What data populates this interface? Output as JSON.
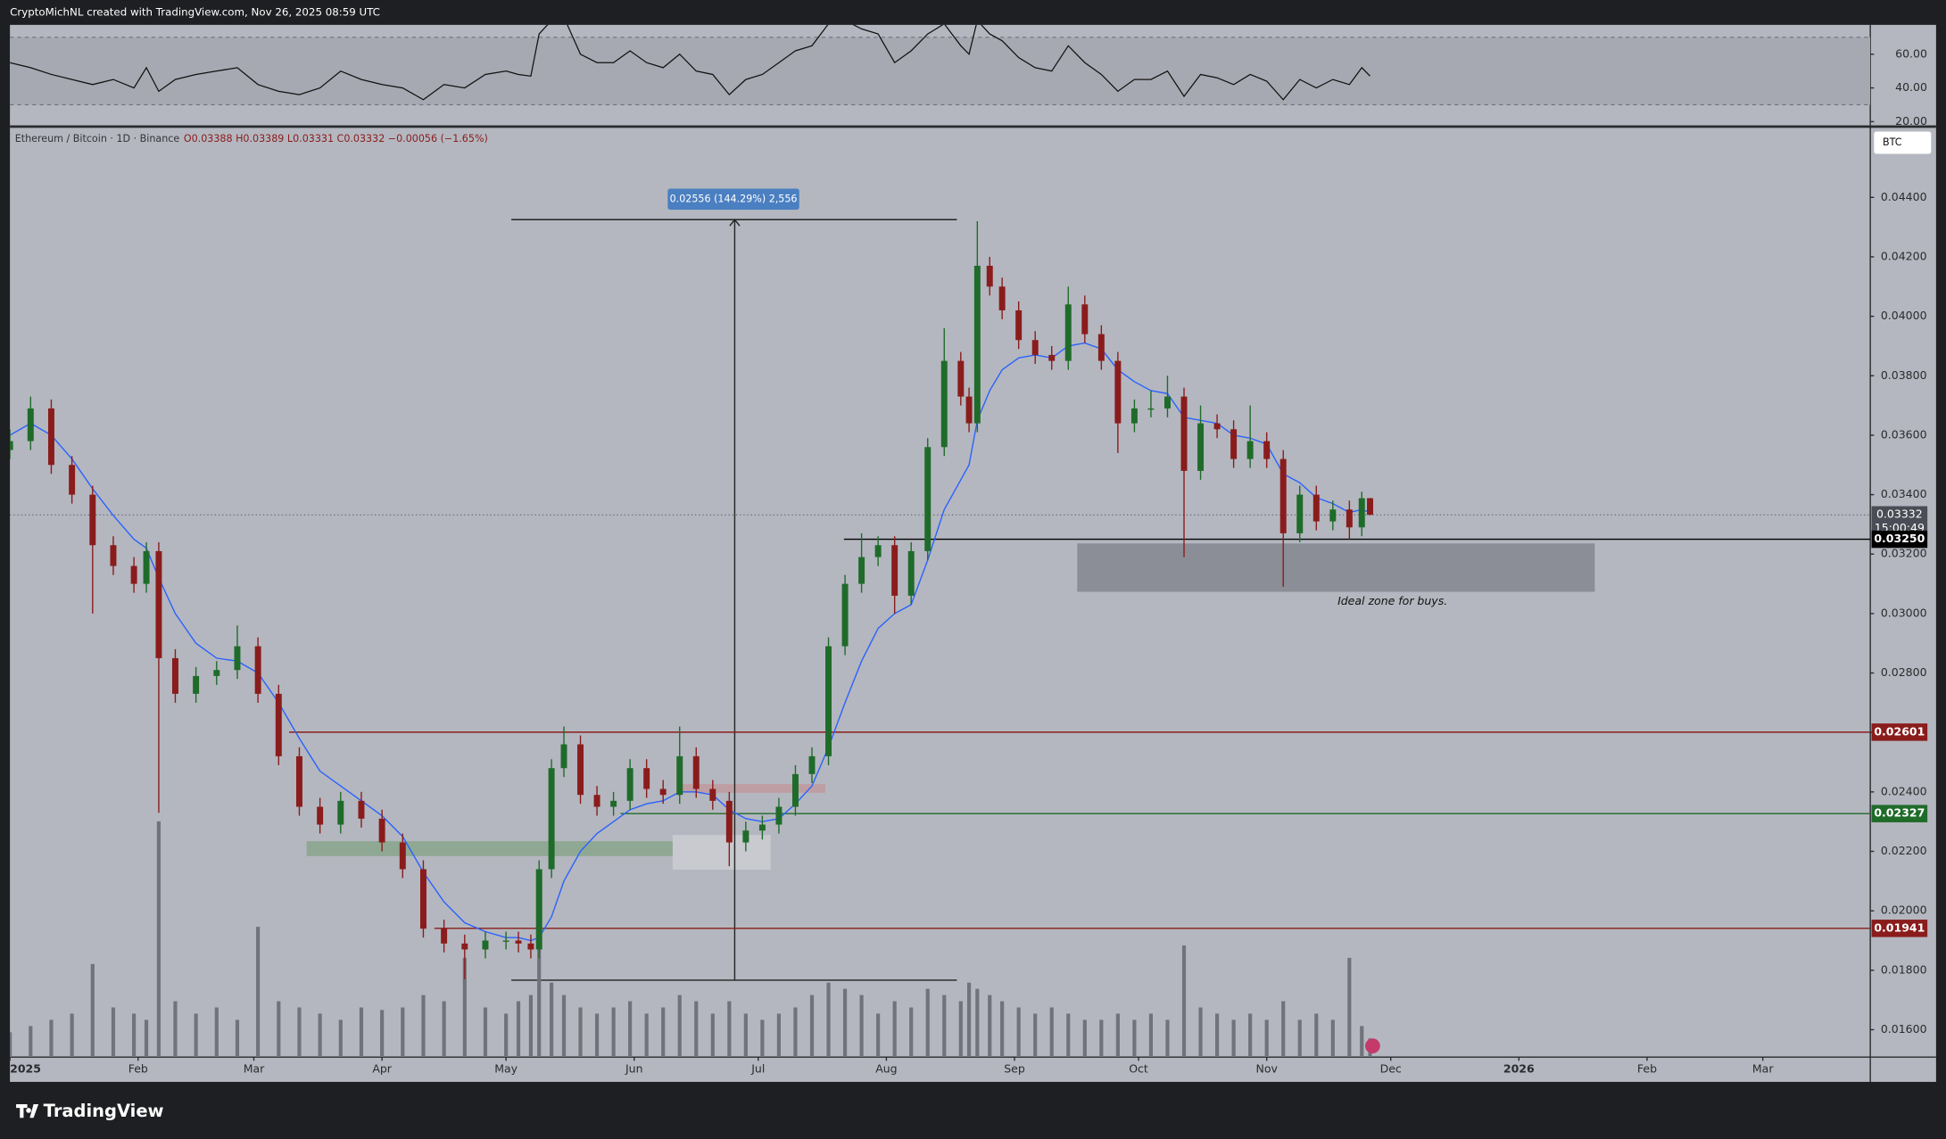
{
  "header": {
    "author_line": "CryptoMichNL created with TradingView.com, Nov 26, 2025 08:59 UTC"
  },
  "chart_data": {
    "type": "candlestick",
    "symbol": "Ethereum / Bitcoin · 1D · Binance",
    "ohlc_legend": "O0.03388 H0.03389 L0.03331 C0.03332 −0.00056 (−1.65%)",
    "currency": "BTC",
    "up_color": "#1f6b2a",
    "down_color": "#8a1c1c",
    "volume_color": "#70737b",
    "x": [
      0,
      5,
      10,
      15,
      20,
      25,
      30,
      33,
      36,
      40,
      45,
      50,
      55,
      60,
      65,
      70,
      75,
      80,
      85,
      90,
      95,
      100,
      105,
      110,
      115,
      120,
      123,
      126,
      128,
      131,
      134,
      138,
      142,
      146,
      150,
      154,
      158,
      162,
      166,
      170,
      174,
      178,
      182,
      186,
      190,
      194,
      198,
      202,
      206,
      210,
      214,
      218,
      222,
      226,
      230,
      232,
      234,
      237,
      240,
      244,
      248,
      252,
      256,
      260,
      264,
      268,
      272,
      276,
      280,
      284,
      288,
      292,
      296,
      300,
      304,
      308,
      312,
      316,
      320,
      324,
      327,
      329
    ],
    "candles": [
      [
        0.0355,
        0.0362,
        0.0352,
        0.0358
      ],
      [
        0.0358,
        0.0373,
        0.0355,
        0.0369
      ],
      [
        0.0369,
        0.0372,
        0.0347,
        0.035
      ],
      [
        0.035,
        0.0353,
        0.0337,
        0.034
      ],
      [
        0.034,
        0.0343,
        0.03,
        0.0323
      ],
      [
        0.0323,
        0.0326,
        0.0313,
        0.0316
      ],
      [
        0.0316,
        0.0319,
        0.0307,
        0.031
      ],
      [
        0.031,
        0.0324,
        0.0307,
        0.0321
      ],
      [
        0.0321,
        0.0324,
        0.0233,
        0.0285
      ],
      [
        0.0285,
        0.0288,
        0.027,
        0.0273
      ],
      [
        0.0273,
        0.0282,
        0.027,
        0.0279
      ],
      [
        0.0279,
        0.0284,
        0.0276,
        0.0281
      ],
      [
        0.0281,
        0.0296,
        0.0278,
        0.0289
      ],
      [
        0.0289,
        0.0292,
        0.027,
        0.0273
      ],
      [
        0.0273,
        0.0276,
        0.0249,
        0.0252
      ],
      [
        0.0252,
        0.0255,
        0.0232,
        0.0235
      ],
      [
        0.0235,
        0.0238,
        0.0226,
        0.0229
      ],
      [
        0.0229,
        0.024,
        0.0226,
        0.0237
      ],
      [
        0.0237,
        0.024,
        0.0228,
        0.0231
      ],
      [
        0.0231,
        0.0234,
        0.022,
        0.0223
      ],
      [
        0.0223,
        0.0226,
        0.0211,
        0.0214
      ],
      [
        0.0214,
        0.0217,
        0.0191,
        0.0194
      ],
      [
        0.0194,
        0.0197,
        0.0186,
        0.0189
      ],
      [
        0.0189,
        0.0192,
        0.0177,
        0.0187
      ],
      [
        0.0187,
        0.0193,
        0.0184,
        0.019
      ],
      [
        0.019,
        0.0193,
        0.0187,
        0.019
      ],
      [
        0.019,
        0.0193,
        0.0186,
        0.0189
      ],
      [
        0.0189,
        0.0192,
        0.0184,
        0.0187
      ],
      [
        0.0187,
        0.0217,
        0.0184,
        0.0214
      ],
      [
        0.0214,
        0.0251,
        0.0211,
        0.0248
      ],
      [
        0.0248,
        0.0262,
        0.0245,
        0.0256
      ],
      [
        0.0256,
        0.0259,
        0.0236,
        0.0239
      ],
      [
        0.0239,
        0.0242,
        0.0232,
        0.0235
      ],
      [
        0.0235,
        0.024,
        0.0232,
        0.0237
      ],
      [
        0.0237,
        0.0251,
        0.0234,
        0.0248
      ],
      [
        0.0248,
        0.0251,
        0.0238,
        0.0241
      ],
      [
        0.0241,
        0.0244,
        0.0236,
        0.0239
      ],
      [
        0.0239,
        0.0262,
        0.0236,
        0.0252
      ],
      [
        0.0252,
        0.0255,
        0.0238,
        0.0241
      ],
      [
        0.0241,
        0.0244,
        0.0234,
        0.0237
      ],
      [
        0.0237,
        0.024,
        0.0215,
        0.0223
      ],
      [
        0.0223,
        0.023,
        0.022,
        0.0227
      ],
      [
        0.0227,
        0.0232,
        0.0224,
        0.0229
      ],
      [
        0.0229,
        0.0238,
        0.0226,
        0.0235
      ],
      [
        0.0235,
        0.0249,
        0.0232,
        0.0246
      ],
      [
        0.0246,
        0.0255,
        0.0243,
        0.0252
      ],
      [
        0.0252,
        0.0292,
        0.0249,
        0.0289
      ],
      [
        0.0289,
        0.0313,
        0.0286,
        0.031
      ],
      [
        0.031,
        0.0327,
        0.0307,
        0.0319
      ],
      [
        0.0319,
        0.0326,
        0.0316,
        0.0323
      ],
      [
        0.0323,
        0.0326,
        0.03,
        0.0306
      ],
      [
        0.0306,
        0.0324,
        0.0303,
        0.0321
      ],
      [
        0.0321,
        0.0359,
        0.0318,
        0.0356
      ],
      [
        0.0356,
        0.0396,
        0.0353,
        0.0385
      ],
      [
        0.0385,
        0.0388,
        0.037,
        0.0373
      ],
      [
        0.0373,
        0.0376,
        0.0361,
        0.0364
      ],
      [
        0.0364,
        0.0432,
        0.0361,
        0.0417
      ],
      [
        0.0417,
        0.042,
        0.0407,
        0.041
      ],
      [
        0.041,
        0.0413,
        0.0399,
        0.0402
      ],
      [
        0.0402,
        0.0405,
        0.0389,
        0.0392
      ],
      [
        0.0392,
        0.0395,
        0.0384,
        0.0387
      ],
      [
        0.0387,
        0.039,
        0.0382,
        0.0385
      ],
      [
        0.0385,
        0.041,
        0.0382,
        0.0404
      ],
      [
        0.0404,
        0.0407,
        0.0391,
        0.0394
      ],
      [
        0.0394,
        0.0397,
        0.0382,
        0.0385
      ],
      [
        0.0385,
        0.0388,
        0.0354,
        0.0364
      ],
      [
        0.0364,
        0.0372,
        0.0361,
        0.0369
      ],
      [
        0.0369,
        0.0375,
        0.0366,
        0.0369
      ],
      [
        0.0369,
        0.038,
        0.0366,
        0.0373
      ],
      [
        0.0373,
        0.0376,
        0.0319,
        0.0348
      ],
      [
        0.0348,
        0.037,
        0.0345,
        0.0364
      ],
      [
        0.0364,
        0.0367,
        0.0359,
        0.0362
      ],
      [
        0.0362,
        0.0365,
        0.0349,
        0.0352
      ],
      [
        0.0352,
        0.037,
        0.0349,
        0.0358
      ],
      [
        0.0358,
        0.0361,
        0.0349,
        0.0352
      ],
      [
        0.0352,
        0.0355,
        0.0309,
        0.0327
      ],
      [
        0.0327,
        0.0343,
        0.0324,
        0.034
      ],
      [
        0.034,
        0.0343,
        0.0328,
        0.0331
      ],
      [
        0.0331,
        0.0338,
        0.0328,
        0.0335
      ],
      [
        0.0335,
        0.0338,
        0.0325,
        0.0329
      ],
      [
        0.0329,
        0.0341,
        0.0326,
        0.03388
      ],
      [
        0.03388,
        0.03389,
        0.03331,
        0.03332
      ]
    ],
    "volume": [
      20,
      25,
      30,
      35,
      75,
      40,
      35,
      30,
      190,
      45,
      35,
      40,
      30,
      105,
      45,
      40,
      35,
      30,
      40,
      38,
      40,
      50,
      45,
      80,
      40,
      35,
      45,
      50,
      90,
      60,
      50,
      40,
      35,
      40,
      45,
      35,
      40,
      50,
      45,
      35,
      45,
      35,
      30,
      35,
      40,
      50,
      60,
      55,
      50,
      35,
      45,
      40,
      55,
      50,
      45,
      60,
      55,
      50,
      45,
      40,
      35,
      40,
      35,
      30,
      30,
      35,
      30,
      35,
      30,
      90,
      40,
      35,
      30,
      35,
      30,
      45,
      30,
      35,
      30,
      80,
      25,
      15
    ],
    "ma": {
      "color": "#2962ff",
      "values": [
        0.036,
        0.0364,
        0.036,
        0.0352,
        0.0342,
        0.0333,
        0.0325,
        0.0322,
        0.0312,
        0.03,
        0.029,
        0.0285,
        0.0284,
        0.028,
        0.027,
        0.0258,
        0.0247,
        0.0242,
        0.0237,
        0.0232,
        0.0225,
        0.0213,
        0.0203,
        0.0196,
        0.0193,
        0.0191,
        0.0191,
        0.019,
        0.0191,
        0.0198,
        0.021,
        0.022,
        0.0226,
        0.023,
        0.0234,
        0.0236,
        0.0237,
        0.024,
        0.024,
        0.0239,
        0.0234,
        0.0231,
        0.023,
        0.0231,
        0.0236,
        0.0242,
        0.0255,
        0.027,
        0.0284,
        0.0295,
        0.03,
        0.0303,
        0.0318,
        0.0335,
        0.0345,
        0.035,
        0.0365,
        0.0375,
        0.0382,
        0.0386,
        0.0387,
        0.0386,
        0.039,
        0.0391,
        0.0389,
        0.0382,
        0.0378,
        0.0375,
        0.0374,
        0.0366,
        0.0365,
        0.0364,
        0.036,
        0.0359,
        0.0357,
        0.0347,
        0.0344,
        0.0339,
        0.0337,
        0.0334,
        0.0335,
        0.0334
      ]
    },
    "xlim": [
      0,
      450
    ],
    "xticks": [
      {
        "value": 0,
        "label": "2025"
      },
      {
        "value": 31,
        "label": "Feb"
      },
      {
        "value": 59,
        "label": "Mar"
      },
      {
        "value": 90,
        "label": "Apr"
      },
      {
        "value": 120,
        "label": "May"
      },
      {
        "value": 151,
        "label": "Jun"
      },
      {
        "value": 181,
        "label": "Jul"
      },
      {
        "value": 212,
        "label": "Aug"
      },
      {
        "value": 243,
        "label": "Sep"
      },
      {
        "value": 273,
        "label": "Oct"
      },
      {
        "value": 304,
        "label": "Nov"
      },
      {
        "value": 334,
        "label": "Dec"
      },
      {
        "value": 365,
        "label": "2026"
      },
      {
        "value": 396,
        "label": "Feb"
      },
      {
        "value": 424,
        "label": "Mar"
      }
    ],
    "ylim": [
      0.01508,
      0.04634
    ],
    "yticks": [
      {
        "value": 0.016,
        "label": "0.01600"
      },
      {
        "value": 0.018,
        "label": "0.01800"
      },
      {
        "value": 0.02,
        "label": "0.02000"
      },
      {
        "value": 0.022,
        "label": "0.02200"
      },
      {
        "value": 0.024,
        "label": "0.02400"
      },
      {
        "value": 0.026,
        "label": "0.02600"
      },
      {
        "value": 0.028,
        "label": "0.02800"
      },
      {
        "value": 0.03,
        "label": "0.03000"
      },
      {
        "value": 0.032,
        "label": "0.03200"
      },
      {
        "value": 0.034,
        "label": "0.03400"
      },
      {
        "value": 0.036,
        "label": "0.03600"
      },
      {
        "value": 0.038,
        "label": "0.03800"
      },
      {
        "value": 0.04,
        "label": "0.04000"
      },
      {
        "value": 0.042,
        "label": "0.04200"
      },
      {
        "value": 0.044,
        "label": "0.04400"
      }
    ],
    "current": {
      "value": 0.03332,
      "label": "0.03332",
      "countdown": "15:00:49",
      "color": "#4a4d55"
    },
    "levels": [
      {
        "value": 0.0325,
        "label": "0.03250",
        "color": "#000000"
      },
      {
        "value": 0.02601,
        "label": "0.02601",
        "color": "#8a1c1c"
      },
      {
        "value": 0.02327,
        "label": "0.02327",
        "color": "#1f6b2a"
      },
      {
        "value": 0.01941,
        "label": "0.01941",
        "color": "#8a1c1c"
      }
    ],
    "measure_label": "0.02556 (144.29%) 2,556",
    "zone_note": "Ideal zone for buys.",
    "rsi": {
      "color": "#111111",
      "values": [
        55,
        52,
        48,
        45,
        42,
        45,
        40,
        52,
        38,
        45,
        48,
        50,
        52,
        42,
        38,
        36,
        40,
        50,
        45,
        42,
        40,
        33,
        42,
        40,
        48,
        50,
        48,
        47,
        72,
        80,
        82,
        60,
        55,
        55,
        62,
        55,
        52,
        60,
        50,
        48,
        36,
        45,
        48,
        55,
        62,
        65,
        78,
        80,
        75,
        72,
        55,
        62,
        72,
        78,
        65,
        60,
        80,
        72,
        68,
        58,
        52,
        50,
        65,
        55,
        48,
        38,
        45,
        45,
        50,
        35,
        48,
        46,
        42,
        48,
        44,
        33,
        45,
        40,
        45,
        42,
        52,
        47
      ],
      "ylim": [
        17.8,
        77.4
      ],
      "band": [
        30,
        70
      ],
      "yticks": [
        {
          "value": 20,
          "label": "20.00"
        },
        {
          "value": 40,
          "label": "40.00"
        },
        {
          "value": 60,
          "label": "60.00"
        }
      ]
    }
  },
  "footer": {
    "brand": "TradingView"
  }
}
